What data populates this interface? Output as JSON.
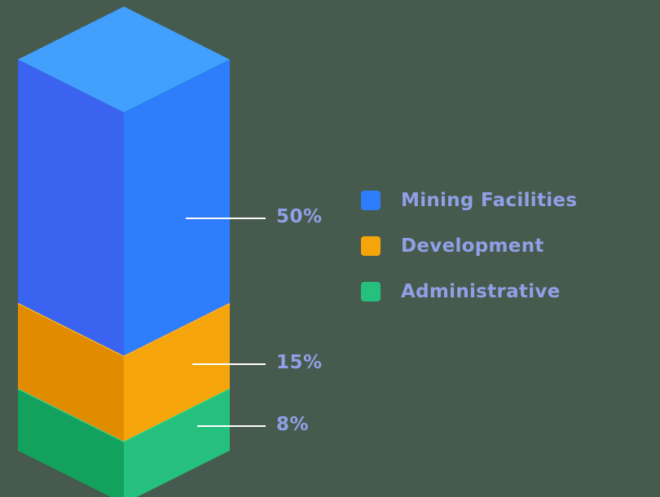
{
  "chart_data": {
    "type": "bar",
    "variant": "isometric-stacked-column",
    "title": "",
    "categories": [
      "Mining Facilities",
      "Development",
      "Administrative"
    ],
    "values": [
      50,
      15,
      8
    ],
    "unit": "%",
    "segments": [
      {
        "label": "Mining Facilities",
        "value": 50,
        "value_label": "50%",
        "color_left": "#3a63ef",
        "color_right": "#2e7dfd",
        "color_top": "#41a0fd"
      },
      {
        "label": "Development",
        "value": 15,
        "value_label": "15%",
        "color_left": "#e18c00",
        "color_right": "#f5a50a",
        "color_rim": "#ffb42d"
      },
      {
        "label": "Administrative",
        "value": 8,
        "value_label": "8%",
        "color_left": "#12a25d",
        "color_right": "#25c07d",
        "color_rim": "#38d18c"
      }
    ],
    "legend": [
      {
        "label": "Mining Facilities",
        "color": "#2e7dfd"
      },
      {
        "label": "Development",
        "color": "#f5a50a"
      },
      {
        "label": "Administrative",
        "color": "#25c07d"
      }
    ],
    "legend_position": "right",
    "text_color": "#8fa0e6",
    "callout_line_color": "#ffffff",
    "background_color": "#475a4e"
  }
}
